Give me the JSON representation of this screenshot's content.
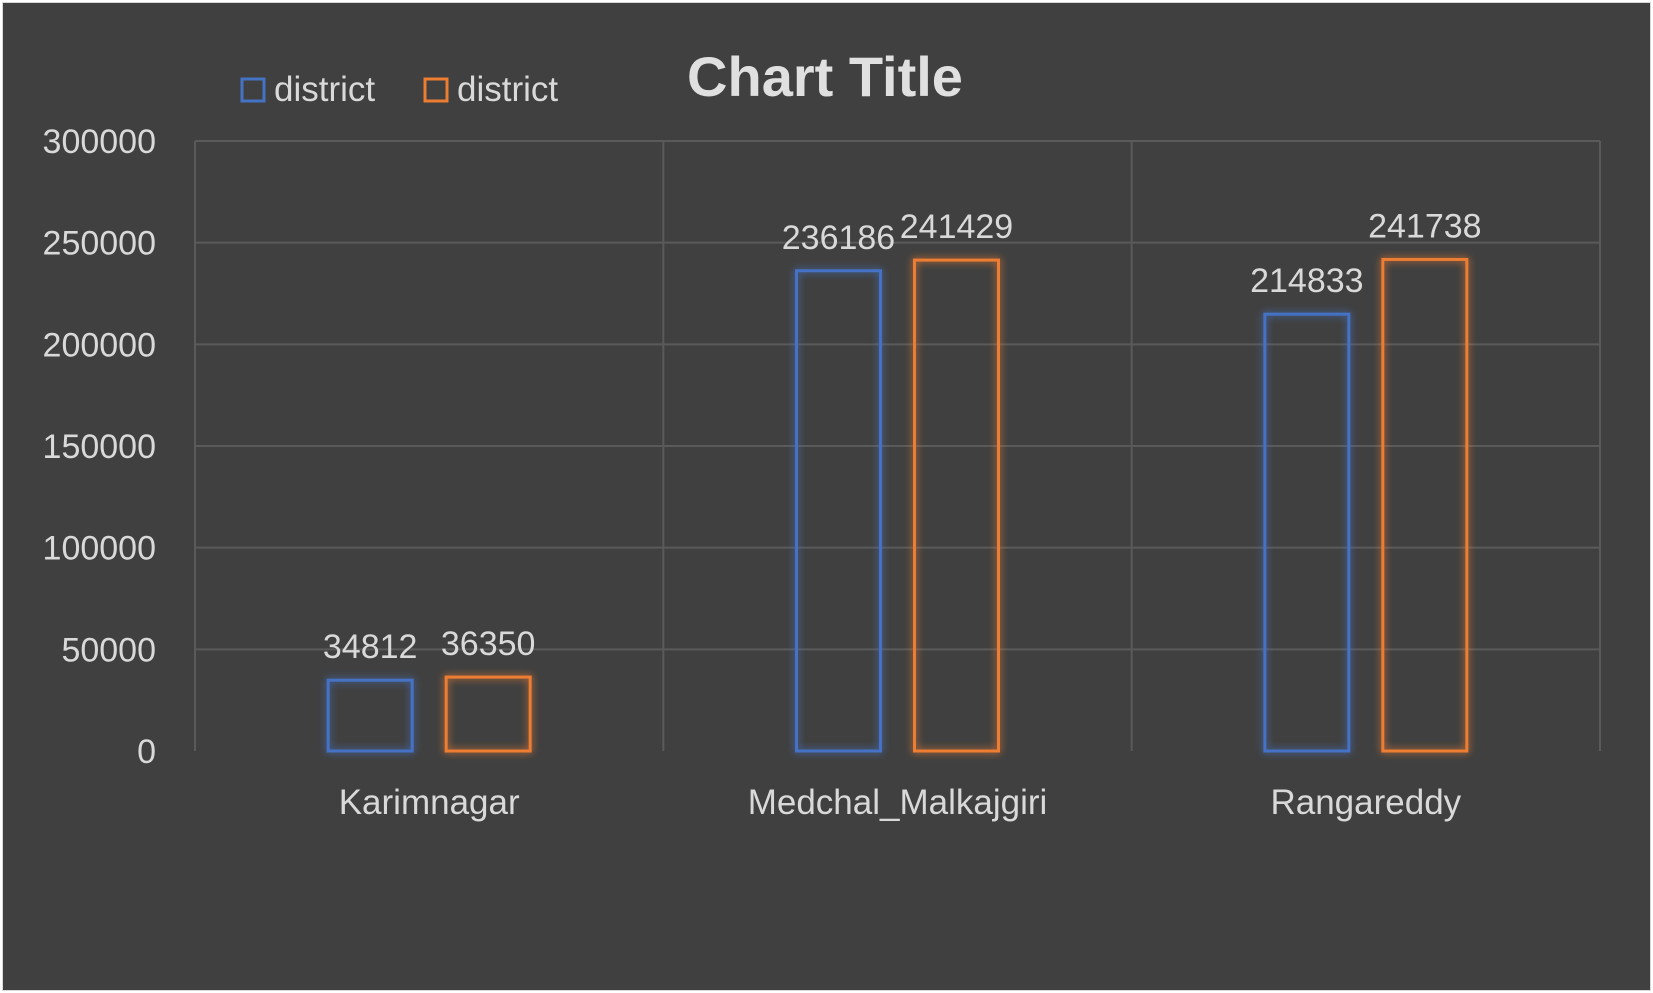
{
  "chart_data": {
    "type": "bar",
    "title": "Chart Title",
    "categories": [
      "Karimnagar",
      "Medchal_Malkajgiri",
      "Rangareddy"
    ],
    "series": [
      {
        "name": "district",
        "color": "#4472c4",
        "values": [
          34812,
          236186,
          214833
        ]
      },
      {
        "name": "district",
        "color": "#ed7d31",
        "values": [
          36350,
          241429,
          241738
        ]
      }
    ],
    "ylim": [
      0,
      300000
    ],
    "yticks": [
      "0",
      "50000",
      "100000",
      "150000",
      "200000",
      "250000",
      "300000"
    ],
    "grid": true,
    "legend_position": "top-left"
  }
}
